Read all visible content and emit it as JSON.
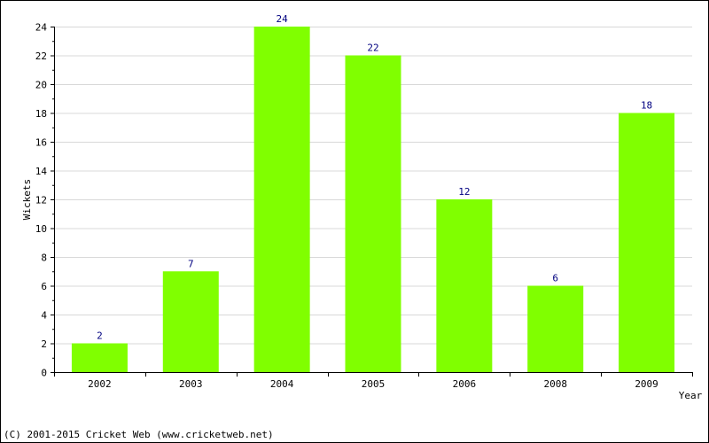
{
  "chart_data": {
    "type": "bar",
    "categories": [
      "2002",
      "2003",
      "2004",
      "2005",
      "2006",
      "2008",
      "2009"
    ],
    "values": [
      2,
      7,
      24,
      22,
      12,
      6,
      18
    ],
    "xlabel": "Year",
    "ylabel": "Wickets",
    "ylim": [
      0,
      24
    ],
    "yticks": [
      0,
      2,
      4,
      6,
      8,
      10,
      12,
      14,
      16,
      18,
      20,
      22,
      24
    ],
    "grid": true,
    "bar_color": "#80ff00",
    "label_color": "#000080",
    "grid_color": "#d8d8d8"
  },
  "footer": {
    "copyright": "(C) 2001-2015 Cricket Web (www.cricketweb.net)"
  }
}
